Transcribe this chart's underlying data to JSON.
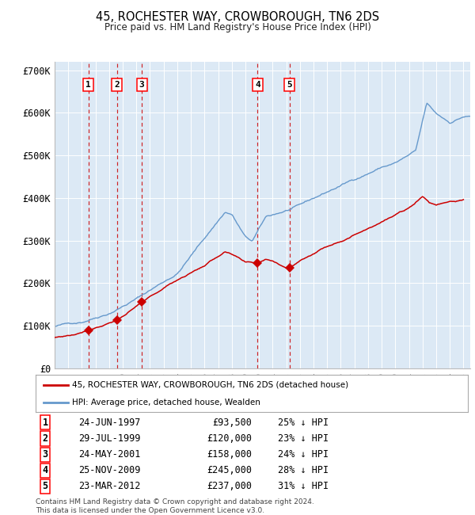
{
  "title": "45, ROCHESTER WAY, CROWBOROUGH, TN6 2DS",
  "subtitle": "Price paid vs. HM Land Registry's House Price Index (HPI)",
  "legend_label_red": "45, ROCHESTER WAY, CROWBOROUGH, TN6 2DS (detached house)",
  "legend_label_blue": "HPI: Average price, detached house, Wealden",
  "footer1": "Contains HM Land Registry data © Crown copyright and database right 2024.",
  "footer2": "This data is licensed under the Open Government Licence v3.0.",
  "plot_bg_color": "#dce9f5",
  "sales": [
    {
      "num": 1,
      "date": "24-JUN-1997",
      "price": 93500,
      "pct": "25%",
      "x_year": 1997.48
    },
    {
      "num": 2,
      "date": "29-JUL-1999",
      "price": 120000,
      "pct": "23%",
      "x_year": 1999.58
    },
    {
      "num": 3,
      "date": "24-MAY-2001",
      "price": 158000,
      "pct": "24%",
      "x_year": 2001.4
    },
    {
      "num": 4,
      "date": "25-NOV-2009",
      "price": 245000,
      "pct": "28%",
      "x_year": 2009.9
    },
    {
      "num": 5,
      "date": "23-MAR-2012",
      "price": 237000,
      "pct": "31%",
      "x_year": 2012.23
    }
  ],
  "red_color": "#cc0000",
  "blue_color": "#6699cc",
  "ylim": [
    0,
    720000
  ],
  "xlim_start": 1995.0,
  "xlim_end": 2025.5,
  "yticks": [
    0,
    100000,
    200000,
    300000,
    400000,
    500000,
    600000,
    700000
  ],
  "ytick_labels": [
    "£0",
    "£100K",
    "£200K",
    "£300K",
    "£400K",
    "£500K",
    "£600K",
    "£700K"
  ],
  "hpi_anchors_x": [
    1995,
    1997,
    1999,
    2001,
    2004,
    2007.5,
    2008.0,
    2009.0,
    2009.5,
    2010.5,
    2013,
    2016,
    2019,
    2020,
    2021.5,
    2022.3,
    2023.0,
    2024.0,
    2025.0
  ],
  "hpi_anchors_y": [
    98000,
    110000,
    135000,
    170000,
    230000,
    375000,
    370000,
    315000,
    305000,
    360000,
    385000,
    430000,
    475000,
    485000,
    510000,
    620000,
    595000,
    575000,
    590000
  ],
  "red_anchors_x": [
    1995.0,
    1996.5,
    1997.48,
    1998.5,
    1999.58,
    2000.5,
    2001.4,
    2003,
    2004,
    2006,
    2007.5,
    2008.3,
    2009.0,
    2009.9,
    2010.5,
    2011.0,
    2012.0,
    2012.23,
    2013,
    2015,
    2017,
    2019,
    2021,
    2022,
    2022.5,
    2023,
    2024,
    2025
  ],
  "red_anchors_y": [
    72000,
    80000,
    93500,
    105000,
    120000,
    138000,
    158000,
    190000,
    210000,
    245000,
    278000,
    265000,
    248000,
    245000,
    255000,
    252000,
    238000,
    237000,
    255000,
    290000,
    320000,
    355000,
    385000,
    415000,
    400000,
    395000,
    405000,
    408000
  ]
}
